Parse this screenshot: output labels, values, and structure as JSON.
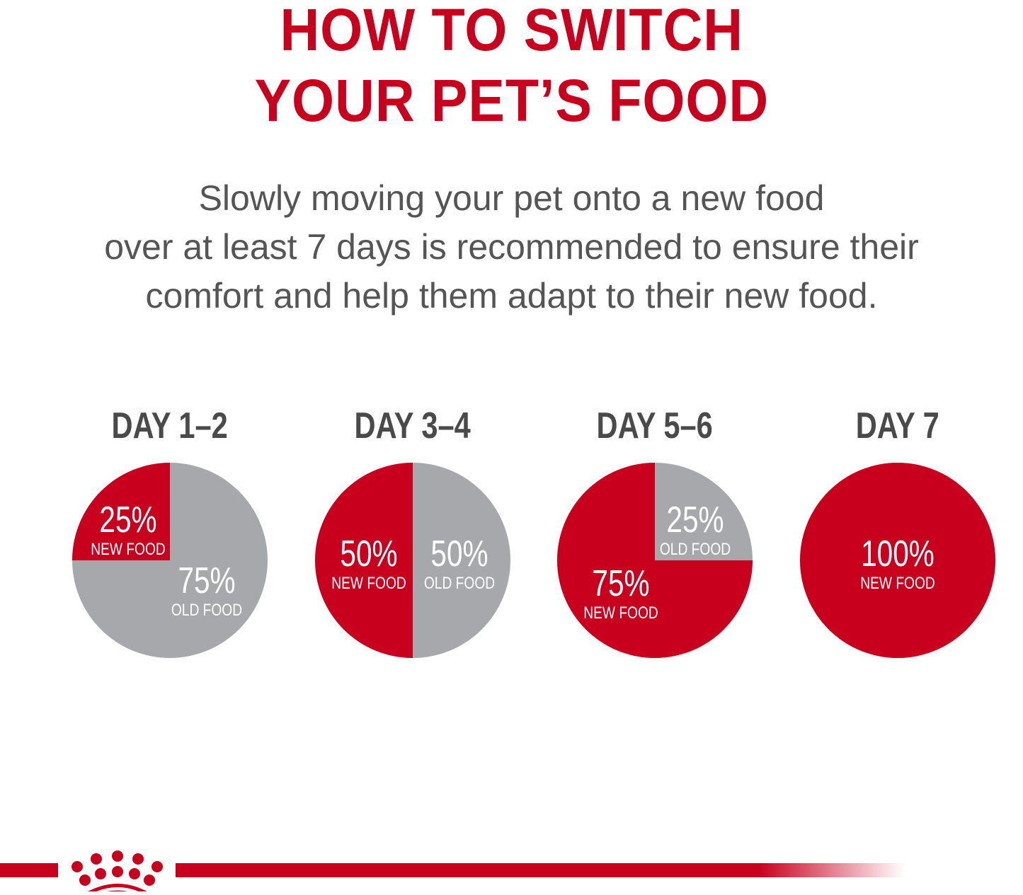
{
  "title": [
    "HOW TO SWITCH",
    "YOUR PET’S FOOD"
  ],
  "subtitle": [
    "Slowly moving your pet onto a new food",
    "over at least 7 days is recommended to ensure their",
    "comfort and help them adapt to their new food."
  ],
  "colors": {
    "new_food": "#c8001e",
    "old_food": "#a7a8ab",
    "title": "#c8001e",
    "text": "#555555"
  },
  "logo": "crown-dots-logo",
  "chart_data": {
    "type": "pie",
    "charts": [
      {
        "label": "DAY 1–2",
        "slices": [
          {
            "name": "NEW FOOD",
            "value": 25,
            "label": "25%"
          },
          {
            "name": "OLD FOOD",
            "value": 75,
            "label": "75%"
          }
        ]
      },
      {
        "label": "DAY 3–4",
        "slices": [
          {
            "name": "NEW FOOD",
            "value": 50,
            "label": "50%"
          },
          {
            "name": "OLD FOOD",
            "value": 50,
            "label": "50%"
          }
        ]
      },
      {
        "label": "DAY 5–6",
        "slices": [
          {
            "name": "NEW FOOD",
            "value": 75,
            "label": "75%"
          },
          {
            "name": "OLD FOOD",
            "value": 25,
            "label": "25%"
          }
        ]
      },
      {
        "label": "DAY 7",
        "slices": [
          {
            "name": "NEW FOOD",
            "value": 100,
            "label": "100%"
          }
        ]
      }
    ]
  }
}
